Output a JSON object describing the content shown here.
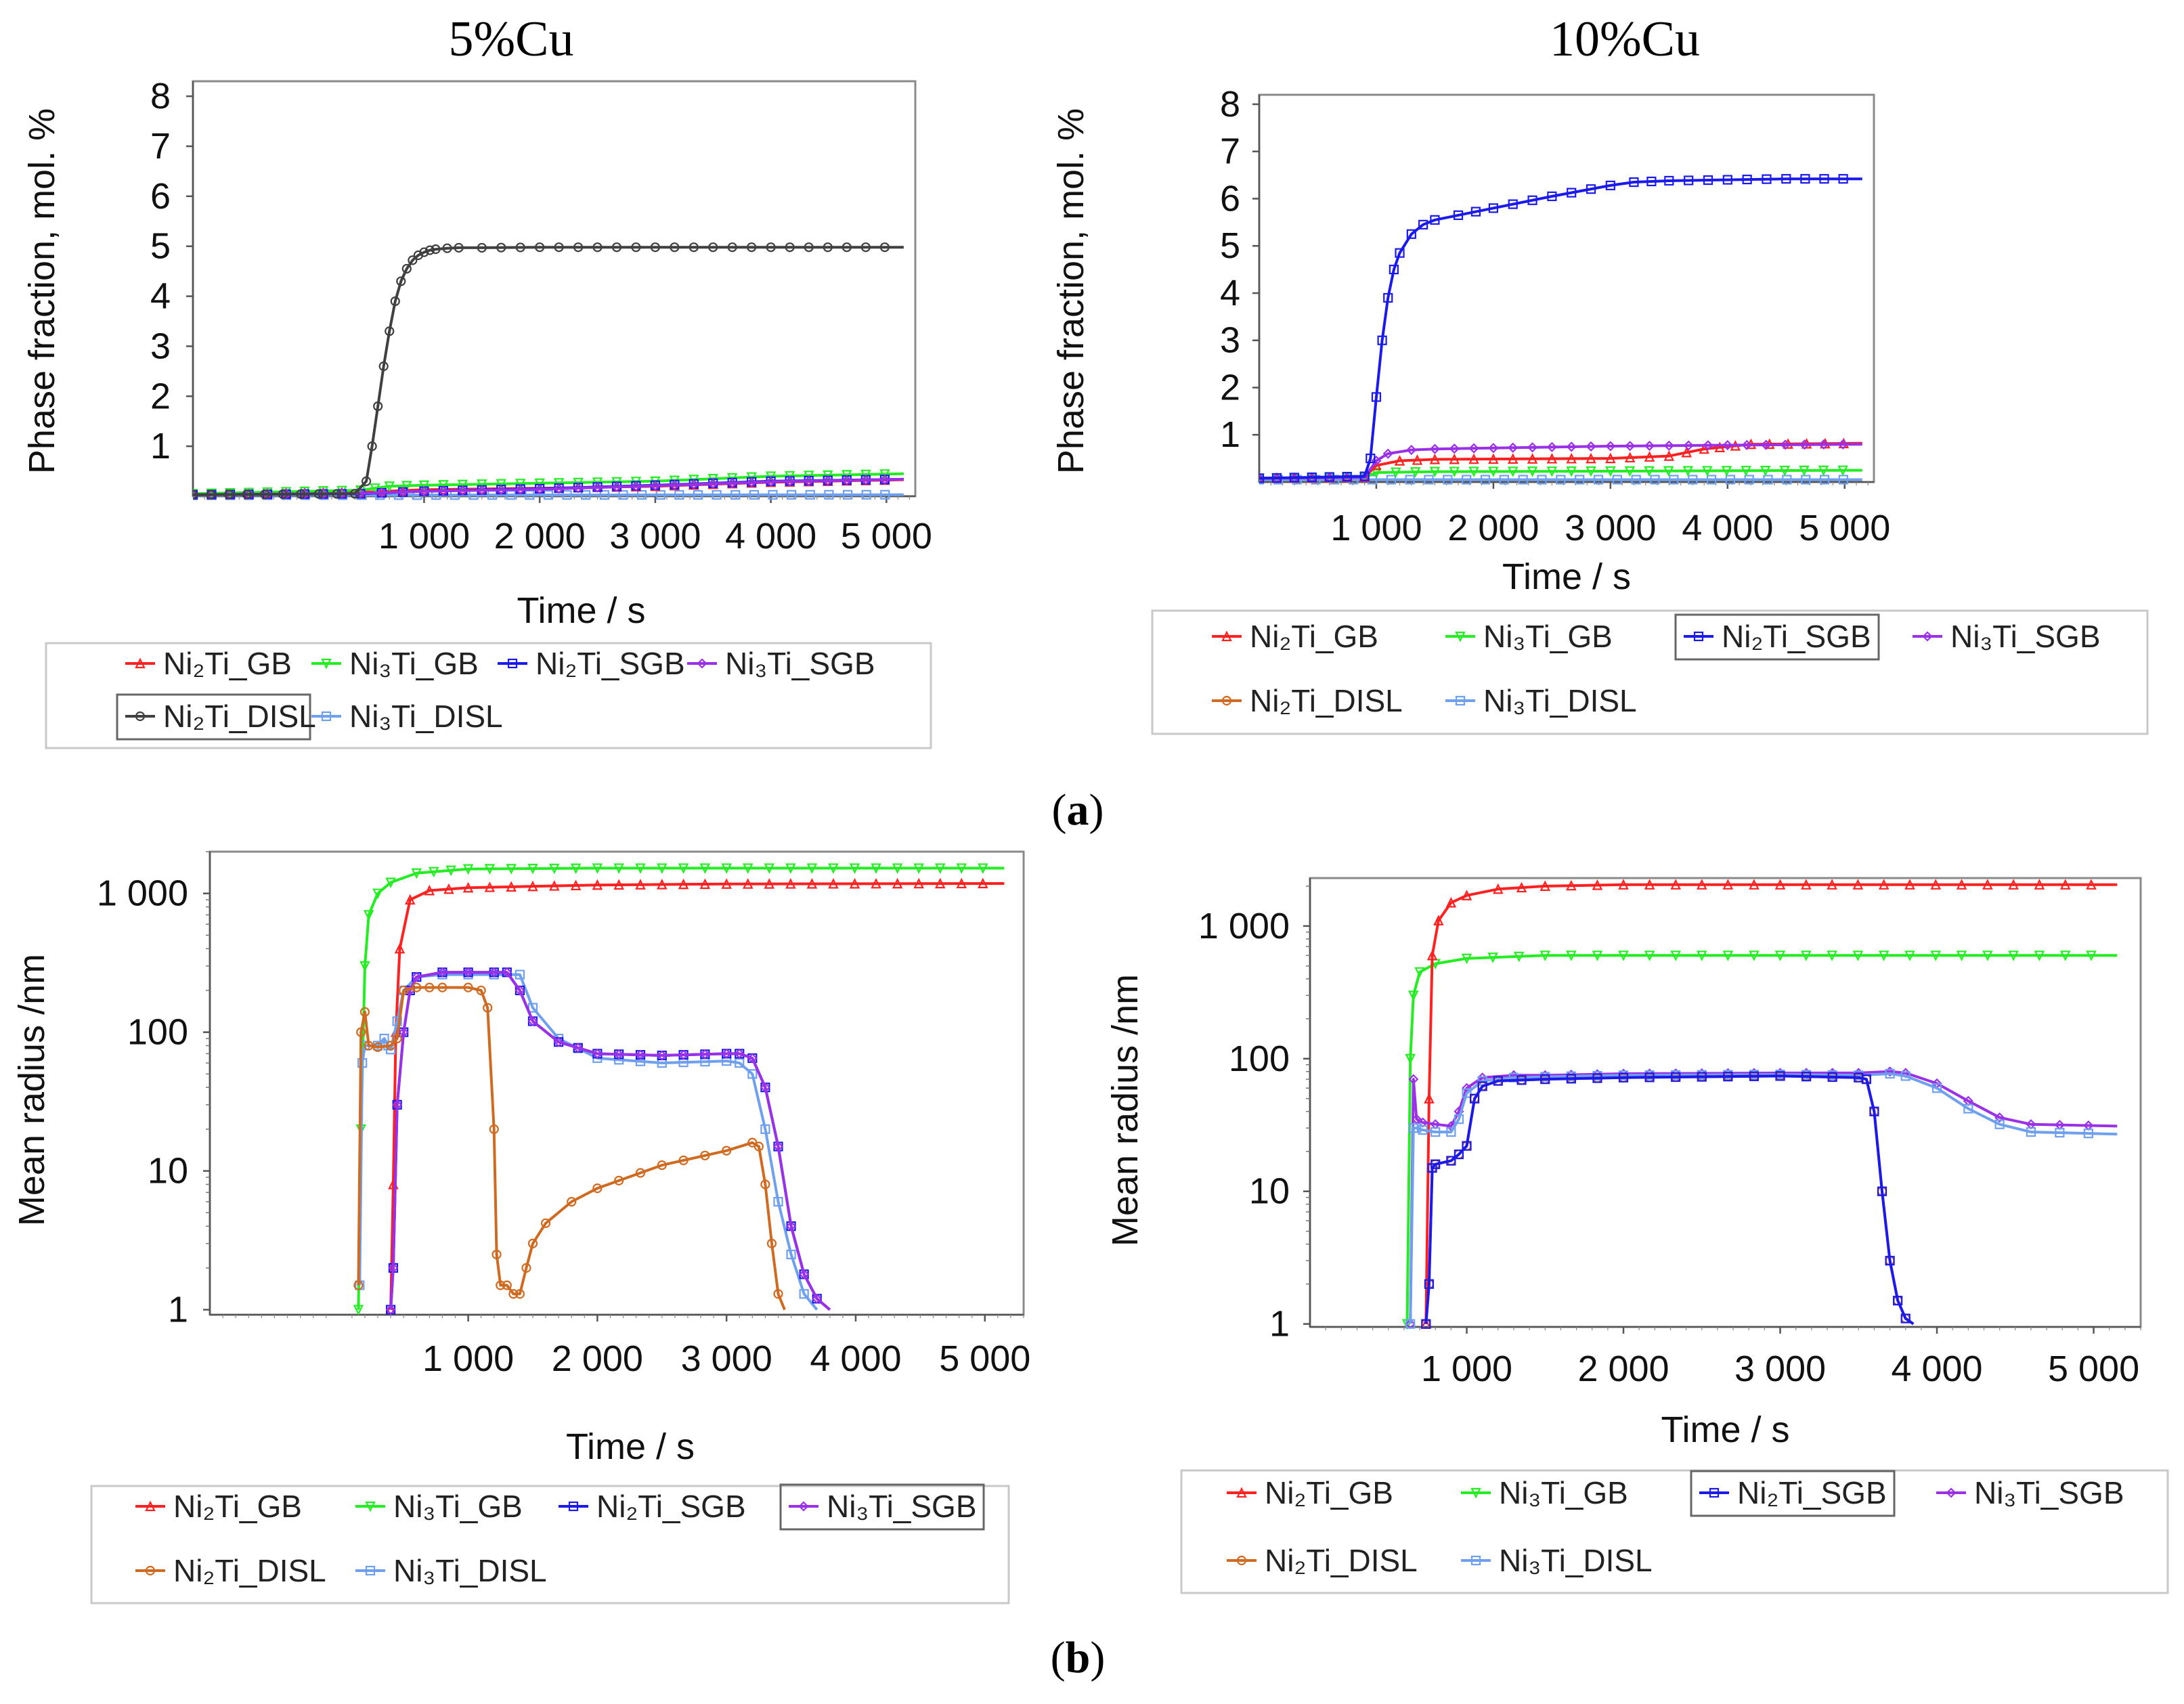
{
  "figure": {
    "col_titles": [
      "5%Cu",
      "10%Cu"
    ],
    "panel_labels": [
      "a",
      "b"
    ],
    "colors": {
      "Ni2Ti_GB": "#ff2020",
      "Ni3Ti_GB": "#22ee22",
      "Ni2Ti_SGB": "#1a1aee",
      "Ni3Ti_SGB": "#9a30e8",
      "Ni2Ti_DISL": "#d06a20",
      "Ni3Ti_DISL": "#6fa0f0",
      "Ni2Ti_DISL_dark": "#404040"
    }
  },
  "chart_data": [
    {
      "id": "a1",
      "type": "line",
      "title": "5%Cu",
      "xlabel": "Time / s",
      "ylabel": "Phase fraction, mol. %",
      "xlim": [
        -1000,
        5250
      ],
      "ylim": [
        0,
        8.3
      ],
      "yscale": "linear",
      "xticks": [
        1000,
        2000,
        3000,
        4000,
        5000
      ],
      "xtick_labels": [
        "1 000",
        "2 000",
        "3 000",
        "4 000",
        "5 000"
      ],
      "yticks": [
        1,
        2,
        3,
        4,
        5,
        6,
        7,
        8
      ],
      "ytick_labels": [
        "1",
        "2",
        "3",
        "4",
        "5",
        "6",
        "7",
        "8"
      ],
      "legend": [
        "Ni2Ti_GB",
        "Ni3Ti_GB",
        "Ni2Ti_SGB",
        "Ni3Ti_SGB",
        "Ni2Ti_DISL",
        "Ni3Ti_DISL"
      ],
      "legend_display": [
        "Ni₂Ti_GB",
        "Ni₃Ti_GB",
        "Ni₂Ti_SGB",
        "Ni₃Ti_SGB",
        "Ni₂Ti_DISL",
        "Ni₃Ti_DISL"
      ],
      "series": [
        {
          "name": "Ni3Ti_DISL",
          "x": [
            -1000,
            5150
          ],
          "y": [
            0.02,
            0.03
          ]
        },
        {
          "name": "Ni2Ti_GB",
          "x": [
            -1000,
            450,
            1000,
            2000,
            3000,
            4000,
            5150
          ],
          "y": [
            0.04,
            0.08,
            0.13,
            0.16,
            0.2,
            0.28,
            0.33
          ]
        },
        {
          "name": "Ni3Ti_GB",
          "x": [
            -1000,
            450,
            700,
            1000,
            2000,
            3000,
            4000,
            5150
          ],
          "y": [
            0.05,
            0.12,
            0.2,
            0.22,
            0.26,
            0.3,
            0.4,
            0.45
          ]
        },
        {
          "name": "Ni2Ti_SGB",
          "x": [
            -1000,
            450,
            1000,
            2000,
            3000,
            4000,
            5150
          ],
          "y": [
            0.03,
            0.05,
            0.1,
            0.15,
            0.22,
            0.3,
            0.34
          ]
        },
        {
          "name": "Ni3Ti_SGB",
          "x": [
            -1000,
            450,
            1000,
            2000,
            3000,
            4000,
            5150
          ],
          "y": [
            0.03,
            0.06,
            0.1,
            0.14,
            0.21,
            0.29,
            0.34
          ]
        },
        {
          "name": "Ni2Ti_DISL",
          "x": [
            -1000,
            400,
            500,
            550,
            600,
            650,
            700,
            750,
            800,
            850,
            900,
            950,
            1000,
            1050,
            1100,
            1200,
            1300,
            1500,
            2000,
            3000,
            4000,
            5150
          ],
          "y": [
            0.03,
            0.05,
            0.3,
            1.0,
            1.8,
            2.6,
            3.3,
            3.9,
            4.3,
            4.55,
            4.72,
            4.82,
            4.88,
            4.92,
            4.94,
            4.96,
            4.97,
            4.97,
            4.98,
            4.98,
            4.98,
            4.98
          ]
        }
      ]
    },
    {
      "id": "a2",
      "type": "line",
      "title": "10%Cu",
      "xlabel": "Time / s",
      "ylabel": "Phase fraction, mol. %",
      "xlim": [
        0,
        5250
      ],
      "ylim": [
        0,
        8.2
      ],
      "yscale": "linear",
      "xticks": [
        1000,
        2000,
        3000,
        4000,
        5000
      ],
      "xtick_labels": [
        "1 000",
        "2 000",
        "3 000",
        "4 000",
        "5 000"
      ],
      "yticks": [
        1,
        2,
        3,
        4,
        5,
        6,
        7,
        8
      ],
      "ytick_labels": [
        "1",
        "2",
        "3",
        "4",
        "5",
        "6",
        "7",
        "8"
      ],
      "legend": [
        "Ni2Ti_GB",
        "Ni3Ti_GB",
        "Ni2Ti_SGB",
        "Ni3Ti_SGB",
        "Ni2Ti_DISL",
        "Ni3Ti_DISL"
      ],
      "legend_display": [
        "Ni₂Ti_GB",
        "Ni₃Ti_GB",
        "Ni₂Ti_SGB",
        "Ni₃Ti_SGB",
        "Ni₂Ti_DISL",
        "Ni₃Ti_DISL"
      ],
      "series": [
        {
          "name": "Ni3Ti_DISL",
          "x": [
            0,
            5150
          ],
          "y": [
            0.05,
            0.05
          ]
        },
        {
          "name": "Ni3Ti_GB",
          "x": [
            0,
            900,
            1000,
            1500,
            3000,
            5150
          ],
          "y": [
            0.08,
            0.1,
            0.2,
            0.22,
            0.23,
            0.25
          ]
        },
        {
          "name": "Ni2Ti_GB",
          "x": [
            0,
            900,
            1000,
            1200,
            1500,
            3000,
            3500,
            3800,
            4200,
            5150
          ],
          "y": [
            0.08,
            0.1,
            0.35,
            0.45,
            0.48,
            0.5,
            0.55,
            0.7,
            0.8,
            0.82
          ]
        },
        {
          "name": "Ni3Ti_SGB",
          "x": [
            0,
            900,
            1000,
            1100,
            1300,
            1500,
            2000,
            3000,
            4000,
            5150
          ],
          "y": [
            0.08,
            0.1,
            0.45,
            0.6,
            0.68,
            0.7,
            0.72,
            0.76,
            0.78,
            0.8
          ]
        },
        {
          "name": "Ni2Ti_SGB",
          "x": [
            0,
            900,
            950,
            1000,
            1050,
            1100,
            1150,
            1200,
            1300,
            1400,
            1500,
            1700,
            2000,
            2500,
            3000,
            3200,
            3500,
            4000,
            4500,
            5150
          ],
          "y": [
            0.08,
            0.12,
            0.5,
            1.8,
            3.0,
            3.9,
            4.5,
            4.85,
            5.25,
            5.45,
            5.55,
            5.65,
            5.8,
            6.05,
            6.28,
            6.35,
            6.38,
            6.4,
            6.42,
            6.42
          ]
        }
      ]
    },
    {
      "id": "b1",
      "type": "line",
      "title": "",
      "xlabel": "Time / s",
      "ylabel": "Mean radius /nm",
      "xlim": [
        -1000,
        5300
      ],
      "ylim": [
        0.92,
        2000
      ],
      "yscale": "log",
      "xticks": [
        1000,
        2000,
        3000,
        4000,
        5000
      ],
      "xtick_labels": [
        "1 000",
        "2 000",
        "3 000",
        "4 000",
        "5 000"
      ],
      "yticks": [
        1,
        10,
        100,
        1000
      ],
      "ytick_labels": [
        "1",
        "10",
        "100",
        "1 000"
      ],
      "legend": [
        "Ni2Ti_GB",
        "Ni3Ti_GB",
        "Ni2Ti_SGB",
        "Ni3Ti_SGB",
        "Ni2Ti_DISL",
        "Ni3Ti_DISL"
      ],
      "legend_display": [
        "Ni₂Ti_GB",
        "Ni₃Ti_GB",
        "Ni₂Ti_SGB",
        "Ni₃Ti_SGB",
        "Ni₂Ti_DISL",
        "Ni₃Ti_DISL"
      ],
      "series": [
        {
          "name": "Ni3Ti_GB",
          "x": [
            150,
            170,
            200,
            230,
            300,
            400,
            600,
            1000,
            2000,
            3000,
            5150
          ],
          "y": [
            1,
            20,
            300,
            700,
            1000,
            1200,
            1400,
            1500,
            1520,
            1520,
            1520
          ]
        },
        {
          "name": "Ni2Ti_GB",
          "x": [
            400,
            420,
            440,
            470,
            550,
            700,
            1000,
            2000,
            3000,
            5150
          ],
          "y": [
            1,
            8,
            100,
            400,
            900,
            1050,
            1100,
            1150,
            1170,
            1180
          ]
        },
        {
          "name": "Ni3Ti_DISL",
          "x": [
            160,
            180,
            200,
            300,
            350,
            380,
            400,
            450,
            500,
            600,
            800,
            1000,
            1200,
            1400,
            1500,
            1700,
            2000,
            2500,
            3000,
            3100,
            3200,
            3300,
            3400,
            3500,
            3600,
            3700
          ],
          "y": [
            1.5,
            60,
            80,
            80,
            90,
            80,
            75,
            120,
            200,
            250,
            260,
            260,
            260,
            260,
            150,
            90,
            65,
            60,
            62,
            60,
            50,
            20,
            6,
            2.5,
            1.3,
            1
          ]
        },
        {
          "name": "Ni2Ti_SGB",
          "x": [
            400,
            420,
            450,
            500,
            550,
            600,
            800,
            1000,
            1200,
            1300,
            1400,
            1500,
            1700,
            2000,
            2500,
            3000,
            3100,
            3200,
            3300,
            3400,
            3500,
            3600,
            3700,
            3800
          ],
          "y": [
            1,
            2,
            30,
            100,
            200,
            250,
            270,
            270,
            270,
            270,
            200,
            120,
            85,
            70,
            68,
            70,
            70,
            65,
            40,
            15,
            4,
            1.8,
            1.2,
            1
          ]
        },
        {
          "name": "Ni3Ti_SGB",
          "x": [
            400,
            420,
            450,
            500,
            550,
            600,
            800,
            1000,
            1200,
            1300,
            1400,
            1500,
            1700,
            2000,
            2500,
            3000,
            3100,
            3200,
            3300,
            3400,
            3500,
            3600,
            3700,
            3800
          ],
          "y": [
            1,
            2,
            30,
            100,
            200,
            250,
            270,
            270,
            270,
            270,
            200,
            120,
            85,
            70,
            68,
            70,
            70,
            65,
            40,
            15,
            4,
            1.8,
            1.2,
            1
          ]
        },
        {
          "name": "Ni2Ti_DISL",
          "x": [
            150,
            170,
            200,
            230,
            300,
            400,
            450,
            500,
            600,
            700,
            800,
            1000,
            1100,
            1150,
            1200,
            1220,
            1250,
            1300,
            1350,
            1400,
            1450,
            1500,
            1600,
            1800,
            2000,
            2500,
            3000,
            3200,
            3250,
            3300,
            3350,
            3400,
            3450
          ],
          "y": [
            1.5,
            100,
            140,
            80,
            78,
            80,
            90,
            200,
            210,
            210,
            210,
            210,
            200,
            150,
            20,
            2.5,
            1.5,
            1.5,
            1.3,
            1.3,
            2,
            3,
            4.2,
            6,
            7.5,
            11,
            14,
            16,
            15,
            8,
            3,
            1.3,
            1
          ]
        }
      ]
    },
    {
      "id": "b2",
      "type": "line",
      "title": "",
      "xlabel": "Time / s",
      "ylabel": "Mean radius /nm",
      "xlim": [
        0,
        5300
      ],
      "ylim": [
        0.95,
        2300
      ],
      "yscale": "log",
      "xticks": [
        1000,
        2000,
        3000,
        4000,
        5000
      ],
      "xtick_labels": [
        "1 000",
        "2 000",
        "3 000",
        "4 000",
        "5 000"
      ],
      "yticks": [
        1,
        10,
        100,
        1000
      ],
      "ytick_labels": [
        "1",
        "10",
        "100",
        "1 000"
      ],
      "legend": [
        "Ni2Ti_GB",
        "Ni3Ti_GB",
        "Ni2Ti_SGB",
        "Ni3Ti_SGB",
        "Ni2Ti_DISL",
        "Ni3Ti_DISL"
      ],
      "legend_display": [
        "Ni₂Ti_GB",
        "Ni₃Ti_GB",
        "Ni₂Ti_SGB",
        "Ni₃Ti_SGB",
        "Ni₂Ti_DISL",
        "Ni₃Ti_DISL"
      ],
      "series": [
        {
          "name": "Ni3Ti_GB",
          "x": [
            620,
            640,
            660,
            700,
            800,
            1000,
            1500,
            3000,
            5150
          ],
          "y": [
            1,
            100,
            300,
            450,
            520,
            570,
            600,
            600,
            600
          ]
        },
        {
          "name": "Ni2Ti_GB",
          "x": [
            740,
            760,
            780,
            820,
            900,
            1000,
            1200,
            1500,
            2000,
            3000,
            5150
          ],
          "y": [
            1,
            50,
            600,
            1100,
            1500,
            1700,
            1900,
            2000,
            2050,
            2050,
            2050
          ]
        },
        {
          "name": "Ni3Ti_SGB",
          "x": [
            640,
            660,
            680,
            720,
            800,
            900,
            950,
            1000,
            1100,
            1300,
            1500,
            2000,
            3000,
            3500,
            3700,
            3800,
            4000,
            4200,
            4400,
            4600,
            5150
          ],
          "y": [
            1,
            70,
            35,
            33,
            32,
            31,
            40,
            60,
            72,
            75,
            75,
            77,
            78,
            78,
            80,
            78,
            65,
            48,
            36,
            32,
            31
          ]
        },
        {
          "name": "Ni3Ti_DISL",
          "x": [
            640,
            660,
            680,
            720,
            800,
            900,
            950,
            1000,
            1100,
            1300,
            1500,
            2000,
            3000,
            3500,
            3700,
            3800,
            4000,
            4200,
            4400,
            4600,
            5150
          ],
          "y": [
            1,
            30,
            30,
            29,
            28,
            28,
            35,
            55,
            68,
            72,
            73,
            75,
            76,
            75,
            77,
            74,
            60,
            42,
            32,
            28,
            27
          ]
        },
        {
          "name": "Ni2Ti_DISL",
          "x": [
            740,
            760,
            780,
            800,
            900,
            950,
            1000,
            1050,
            1100,
            1200,
            1500,
            2000,
            3000,
            3500,
            3550,
            3600,
            3650,
            3700,
            3750,
            3800,
            3850
          ],
          "y": [
            1,
            2,
            15,
            16,
            17,
            19,
            22,
            50,
            62,
            68,
            70,
            72,
            74,
            72,
            70,
            40,
            10,
            3,
            1.5,
            1.1,
            1
          ]
        },
        {
          "name": "Ni2Ti_SGB",
          "x": [
            740,
            760,
            780,
            800,
            900,
            950,
            1000,
            1050,
            1100,
            1200,
            1500,
            2000,
            3000,
            3500,
            3550,
            3600,
            3650,
            3700,
            3750,
            3800,
            3850
          ],
          "y": [
            1,
            2,
            15,
            16,
            17,
            19,
            22,
            50,
            62,
            68,
            70,
            72,
            74,
            72,
            70,
            40,
            10,
            3,
            1.5,
            1.1,
            1
          ]
        }
      ]
    }
  ]
}
